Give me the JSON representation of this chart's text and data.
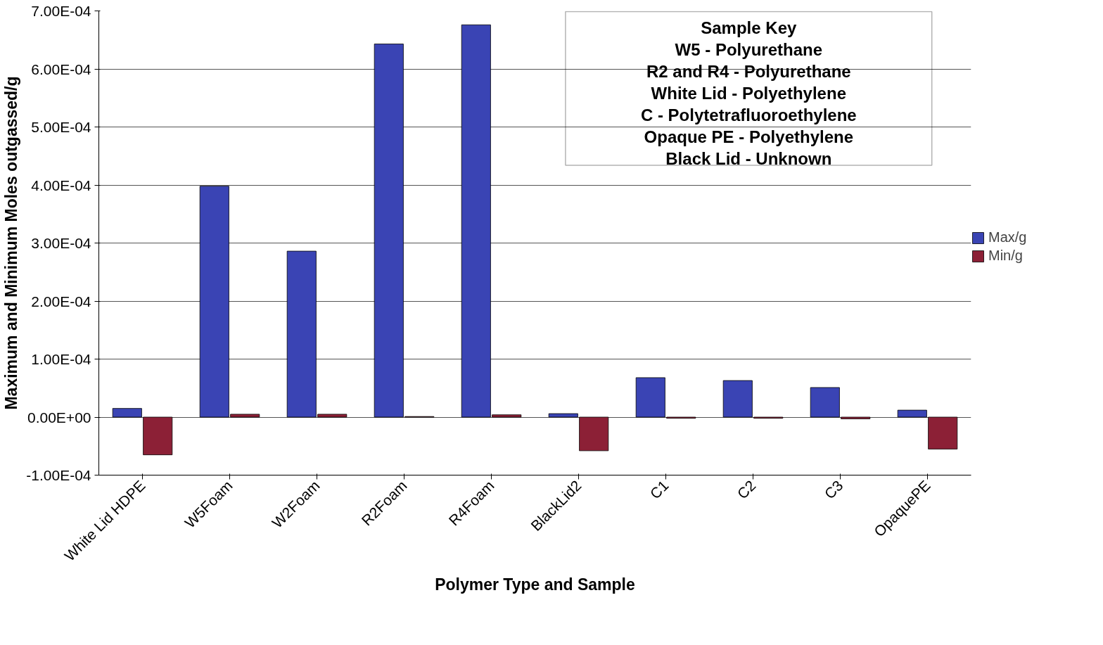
{
  "chart_data": {
    "type": "bar",
    "xlabel": "Polymer Type and Sample",
    "ylabel": "Maximum and Minimum Moles outgassed/g",
    "categories": [
      "White Lid HDPE",
      "W5Foam",
      "W2Foam",
      "R2Foam",
      "R4Foam",
      "BlackLid2",
      "C1",
      "C2",
      "C3",
      "OpaquePE"
    ],
    "series": [
      {
        "name": "Max/g",
        "color": "#3a44b4",
        "values": [
          1.5e-05,
          0.000398,
          0.000286,
          0.000643,
          0.000676,
          6e-06,
          6.8e-05,
          6.3e-05,
          5.1e-05,
          1.2e-05
        ]
      },
      {
        "name": "Min/g",
        "color": "#8c2036",
        "values": [
          -6.5e-05,
          5e-06,
          5e-06,
          1e-06,
          4e-06,
          -5.8e-05,
          -2e-06,
          -2e-06,
          -3e-06,
          -5.5e-05
        ]
      }
    ],
    "ylim": [
      -0.0001,
      0.0007
    ],
    "yticks": [
      {
        "value": -0.0001,
        "label": "-1.00E-04"
      },
      {
        "value": 0,
        "label": "0.00E+00"
      },
      {
        "value": 0.0001,
        "label": "1.00E-04"
      },
      {
        "value": 0.0002,
        "label": "2.00E-04"
      },
      {
        "value": 0.0003,
        "label": "3.00E-04"
      },
      {
        "value": 0.0004,
        "label": "4.00E-04"
      },
      {
        "value": 0.0005,
        "label": "5.00E-04"
      },
      {
        "value": 0.0006,
        "label": "6.00E-04"
      },
      {
        "value": 0.0007,
        "label": "7.00E-04"
      }
    ],
    "grid": "y",
    "legend": "right",
    "annotations": [
      "Sample Key",
      "W5 - Polyurethane",
      "R2 and R4 - Polyurethane",
      "White Lid - Polyethylene",
      "C - Polytetrafluoroethylene",
      "Opaque PE - Polyethylene",
      "Black Lid - Unknown"
    ]
  }
}
